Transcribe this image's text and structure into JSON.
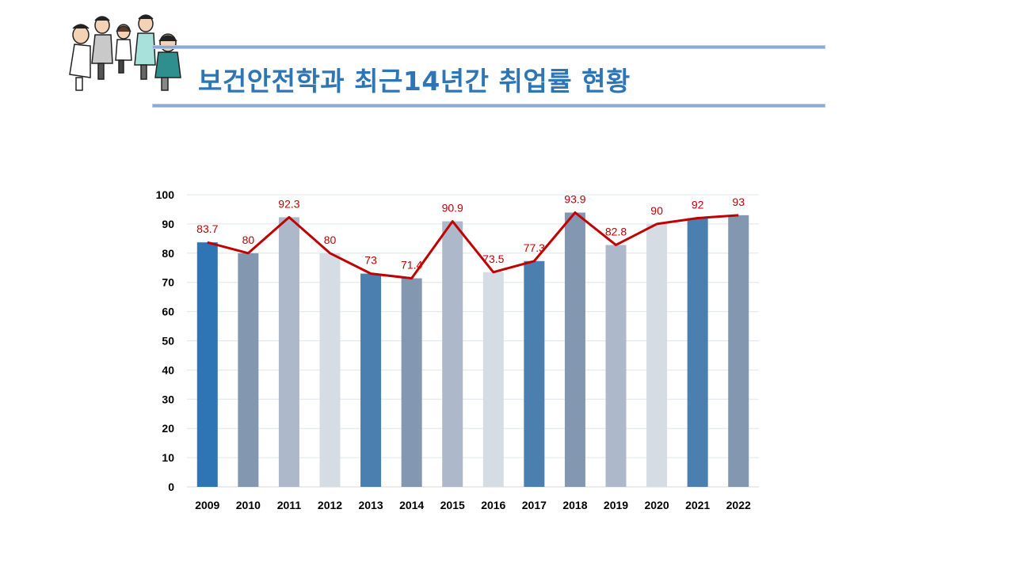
{
  "title": "보건안전학과 최근14년간 취업률 현황",
  "colors": {
    "title": "#2e75b6",
    "line": "#c00000",
    "bar_palette": [
      "#2e75b6",
      "#8497b0",
      "#adb9ca",
      "#d6dce4",
      "#4a7fb0"
    ]
  },
  "chart_data": {
    "type": "bar",
    "categories": [
      "2009",
      "2010",
      "2011",
      "2012",
      "2013",
      "2014",
      "2015",
      "2016",
      "2017",
      "2018",
      "2019",
      "2020",
      "2021",
      "2022"
    ],
    "series": [
      {
        "type": "bar",
        "values": [
          83.7,
          80,
          92.3,
          80,
          73,
          71.4,
          90.9,
          73.5,
          77.3,
          93.9,
          82.8,
          90,
          92,
          93
        ]
      },
      {
        "type": "line",
        "values": [
          83.7,
          80,
          92.3,
          80,
          73,
          71.4,
          90.9,
          73.5,
          77.3,
          93.9,
          82.8,
          90,
          92,
          93
        ]
      }
    ],
    "data_labels": [
      "83.7",
      "80",
      "92.3",
      "80",
      "73",
      "71.4",
      "90.9",
      "73.5",
      "77.3",
      "93.9",
      "82.8",
      "90",
      "92",
      "93"
    ],
    "yticks": [
      "0",
      "10",
      "20",
      "30",
      "40",
      "50",
      "60",
      "70",
      "80",
      "90",
      "100"
    ],
    "ylim": [
      0,
      100
    ],
    "grid": true,
    "legend": "none"
  }
}
